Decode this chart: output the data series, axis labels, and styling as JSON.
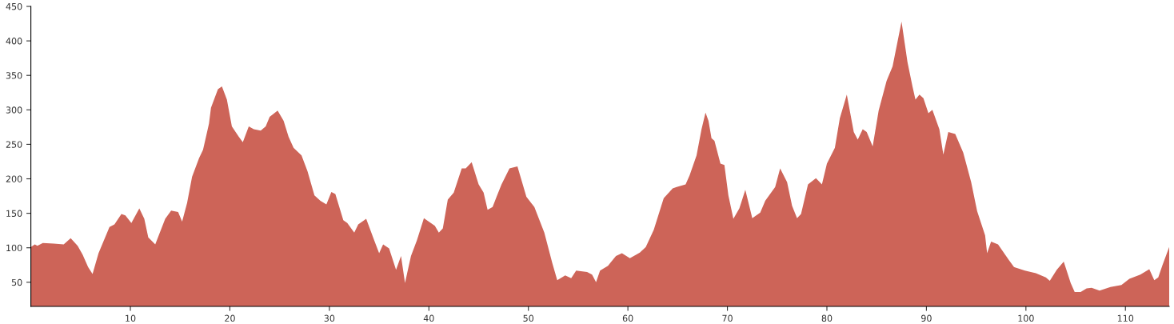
{
  "chart_data": {
    "type": "area",
    "xlim": [
      0,
      114.4
    ],
    "ylim": [
      15,
      450
    ],
    "xticks": [
      10,
      20,
      30,
      40,
      50,
      60,
      70,
      80,
      90,
      100,
      110
    ],
    "yticks": [
      50,
      100,
      150,
      200,
      250,
      300,
      350,
      400,
      450
    ],
    "grid": false,
    "legend": false,
    "series": [
      {
        "color": "#cd6458",
        "x": [
          0,
          0.4,
          0.65,
          1.2,
          2.3,
          3.3,
          4.0,
          4.7,
          5.2,
          5.75,
          6.2,
          6.4,
          6.8,
          7.9,
          8.4,
          9.1,
          9.5,
          10.1,
          10.9,
          11.4,
          11.8,
          12.5,
          13.5,
          14.1,
          14.8,
          15.2,
          15.7,
          16.2,
          16.9,
          17.3,
          17.9,
          18.1,
          18.8,
          19.2,
          19.7,
          20.2,
          20.9,
          21.3,
          21.9,
          22.4,
          23.1,
          23.6,
          24.0,
          24.8,
          25.4,
          25.9,
          26.4,
          27.2,
          27.8,
          28.5,
          29.1,
          29.7,
          30.2,
          30.6,
          31.4,
          31.8,
          32.5,
          32.9,
          33.7,
          34.5,
          35.0,
          35.4,
          36.0,
          36.7,
          37.2,
          37.6,
          38.2,
          38.8,
          39.5,
          40.6,
          41.0,
          41.4,
          41.9,
          42.5,
          43.3,
          43.7,
          44.3,
          45.0,
          45.5,
          45.9,
          46.4,
          46.8,
          47.3,
          48.1,
          48.9,
          49.8,
          50.6,
          51.6,
          52.4,
          52.9,
          53.7,
          54.3,
          54.8,
          55.9,
          56.4,
          56.8,
          57.2,
          58.0,
          58.8,
          59.4,
          60.2,
          61.2,
          61.8,
          62.6,
          63.6,
          64.5,
          64.9,
          65.8,
          66.2,
          66.9,
          67.4,
          67.8,
          68.1,
          68.4,
          68.7,
          69.3,
          69.7,
          70.1,
          70.6,
          71.2,
          71.8,
          72.5,
          73.3,
          73.8,
          74.8,
          75.3,
          76.0,
          76.5,
          77.0,
          77.4,
          78.1,
          78.9,
          79.5,
          80.0,
          80.8,
          81.3,
          82.0,
          82.7,
          83.1,
          83.6,
          84.0,
          84.6,
          85.2,
          86.0,
          86.6,
          87.5,
          88.1,
          88.6,
          88.9,
          89.3,
          89.7,
          90.2,
          90.6,
          91.3,
          91.7,
          92.2,
          92.9,
          93.7,
          94.5,
          95.1,
          95.9,
          96.1,
          96.5,
          97.2,
          98.3,
          98.8,
          99.9,
          101.0,
          102.0,
          102.4,
          103.1,
          103.8,
          104.5,
          104.9,
          105.5,
          106.1,
          106.6,
          107.4,
          108.5,
          109.6,
          110.4,
          111.5,
          112.4,
          112.9,
          113.3,
          113.7,
          114.4
        ],
        "values": [
          101,
          105,
          103,
          107,
          106,
          105,
          114,
          103,
          90,
          72,
          62,
          72,
          92,
          130,
          134,
          149,
          147,
          136,
          157,
          142,
          115,
          105,
          142,
          154,
          152,
          138,
          165,
          203,
          230,
          242,
          280,
          303,
          330,
          334,
          315,
          276,
          261,
          253,
          276,
          272,
          270,
          276,
          290,
          299,
          284,
          261,
          245,
          234,
          211,
          176,
          168,
          163,
          181,
          178,
          140,
          136,
          122,
          134,
          142,
          111,
          92,
          105,
          99,
          68,
          88,
          49,
          88,
          111,
          143,
          132,
          122,
          128,
          170,
          180,
          215,
          215,
          224,
          192,
          180,
          155,
          159,
          174,
          192,
          215,
          218,
          174,
          159,
          122,
          78,
          53,
          60,
          56,
          67,
          65,
          61,
          50,
          67,
          74,
          88,
          92,
          85,
          93,
          101,
          126,
          172,
          186,
          188,
          192,
          205,
          234,
          272,
          296,
          284,
          259,
          255,
          222,
          220,
          176,
          142,
          157,
          184,
          143,
          151,
          168,
          188,
          215,
          195,
          161,
          143,
          149,
          192,
          201,
          192,
          222,
          245,
          288,
          322,
          268,
          257,
          272,
          268,
          247,
          299,
          342,
          363,
          428,
          369,
          334,
          315,
          322,
          317,
          295,
          300,
          272,
          235,
          268,
          265,
          238,
          195,
          153,
          118,
          92,
          109,
          105,
          82,
          72,
          67,
          63,
          57,
          52,
          68,
          80,
          49,
          36,
          36,
          41,
          42,
          38,
          43,
          46,
          55,
          61,
          69,
          53,
          57,
          74,
          101
        ]
      }
    ]
  }
}
